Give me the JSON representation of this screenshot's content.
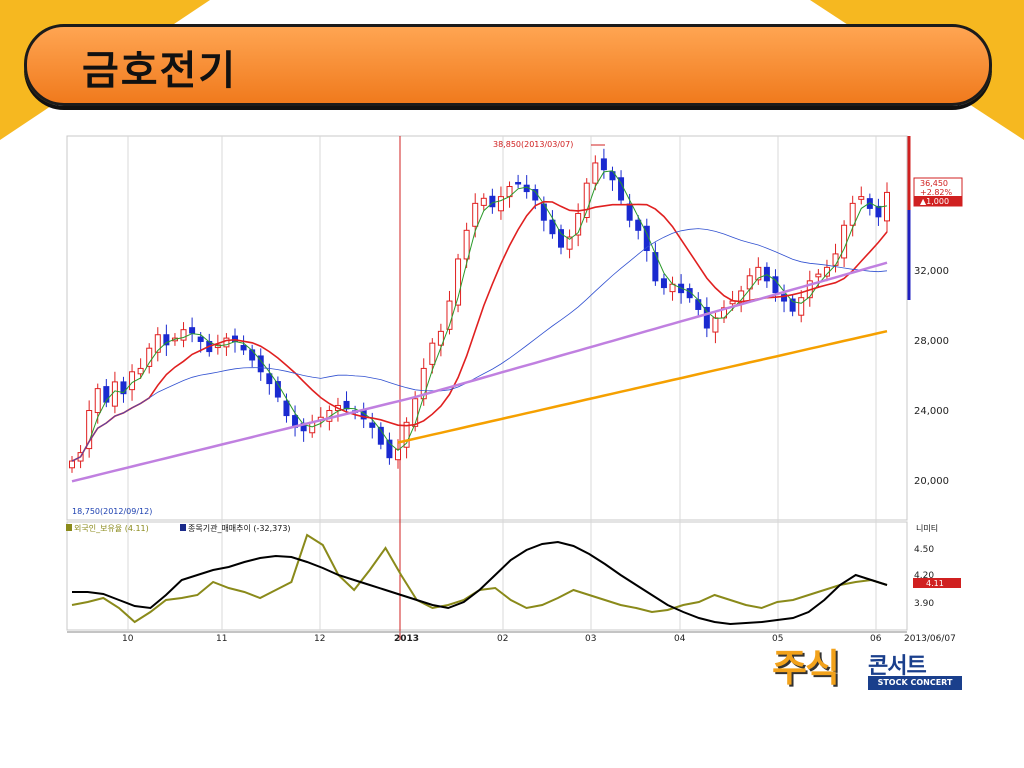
{
  "slide": {
    "title": "금호전기"
  },
  "logo": {
    "main": "주식",
    "sub": "콘서트",
    "english": "STOCK CONCERT"
  },
  "chart_data": {
    "type": "candlestick",
    "x_tick_labels": [
      "10",
      "11",
      "12",
      "2013",
      "02",
      "03",
      "04",
      "05",
      "06",
      "2013/06/07"
    ],
    "price_axis": {
      "ticks": [
        "32,000",
        "28,000",
        "24,000",
        "20,000"
      ],
      "ylim": [
        17000,
        39800
      ]
    },
    "last_price_box": [
      "36,450",
      "+2.82%",
      "▲1,000"
    ],
    "high_annotation": "38,850(2013/03/07)",
    "low_annotation": "18,750(2012/09/12)",
    "ohlc_close": [
      20500,
      21000,
      23500,
      24800,
      24000,
      25200,
      24500,
      25800,
      26000,
      27200,
      28000,
      27400,
      27800,
      28300,
      28100,
      27600,
      27000,
      27400,
      27800,
      27600,
      27100,
      26500,
      25800,
      25100,
      24300,
      23200,
      22500,
      22300,
      22800,
      23100,
      23500,
      23800,
      23600,
      23400,
      23000,
      22500,
      21500,
      20700,
      21200,
      22800,
      24200,
      26000,
      27500,
      28200,
      30000,
      32500,
      34200,
      35800,
      36100,
      35600,
      36200,
      36800,
      37000,
      36500,
      36000,
      34800,
      34000,
      33200,
      33800,
      35200,
      37000,
      38200,
      37800,
      37200,
      36000,
      34800,
      34200,
      33000,
      31200,
      30800,
      31000,
      30500,
      30200,
      29500,
      28400,
      29000,
      29600,
      30000,
      30600,
      31500,
      32000,
      31200,
      30500,
      30000,
      29400,
      30200,
      31200,
      31600,
      32000,
      32800,
      34500,
      35800,
      36200,
      35500,
      35000,
      36450
    ],
    "indicator_panel": {
      "legend": [
        "외국인_보유율 (4.11)",
        "종목기관_매매추이 (-32,373)"
      ],
      "axis_ticks": [
        "4.50",
        "4.20",
        "3.90"
      ],
      "current_value": "4.11",
      "corner_label": "니미티"
    },
    "series": [
      {
        "name": "",
        "color": "#e02020",
        "kind": "ma_medium"
      },
      {
        "name": "",
        "color": "#3050d0",
        "kind": "ma_long"
      },
      {
        "name": "",
        "color": "#c080e0",
        "kind": "ma_longer"
      },
      {
        "name": "",
        "color": "#f5a000",
        "kind": "ma_longest"
      },
      {
        "name": "외국인_보유율",
        "color": "#8a8a1a",
        "kind": "indicator"
      },
      {
        "name": "종목기관_매매추이",
        "color": "#000000",
        "kind": "indicator"
      }
    ]
  }
}
